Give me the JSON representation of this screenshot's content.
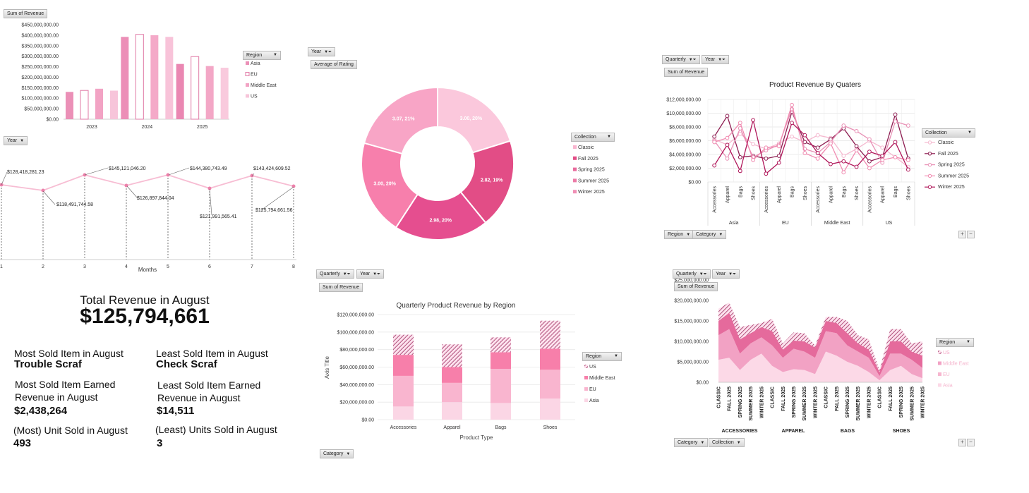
{
  "colors": {
    "asia": "#f4a8c8",
    "eu": "#e86fa0",
    "middle_east": "#f07aa6",
    "us": "#f9c7db",
    "dark": "#a0104e",
    "pink_line": "#f7b6cf",
    "classic": "#f8c4d8",
    "fall": "#e34d87",
    "spring": "#f07aa6",
    "summer": "#e66a9c",
    "winter": "#f0a0c0"
  },
  "buttons": {
    "sum_revenue_1": "Sum of Revenue",
    "region_1": "Region",
    "year_1": "Year",
    "year_2": "Year",
    "avg_rating": "Average of Rating",
    "collection_1": "Collection",
    "quarterly_1": "Quarterly",
    "year_3": "Year",
    "sum_revenue_2": "Sum of Revenue",
    "collection_2": "Collection",
    "region_2": "Region",
    "category_1": "Category",
    "quarterly_2": "Quarterly",
    "year_4": "Year",
    "sum_revenue_3": "Sum of Revenue",
    "region_3": "Region",
    "category_2": "Category",
    "quarterly_3": "Quarterly",
    "year_5": "Year",
    "sum_revenue_4": "Sum of Revenue",
    "region_4": "Region",
    "category_3": "Category",
    "collection_3": "Collection"
  },
  "kpi": {
    "total_title": "Total Revenue in August",
    "total_value": "$125,794,661",
    "most_sold_label": "Most Sold Item in August",
    "most_sold_value": "Trouble Scraf",
    "least_sold_label": "Least Sold Item in August",
    "least_sold_value": "Check Scraf",
    "most_earned_label1": "Most Sold Item Earned",
    "most_earned_label2": "Revenue in August",
    "most_earned_value": "$2,438,264",
    "least_earned_label1": "Least Sold Item Earned",
    "least_earned_label2": "Revenue in August",
    "least_earned_value": "$14,511",
    "most_units_label": "(Most) Unit Sold in August",
    "most_units_value": "493",
    "least_units_label": "(Least) Units Sold in August",
    "least_units_value": "3"
  },
  "chart_data": [
    {
      "id": "region_year_bar",
      "type": "bar",
      "title": "",
      "categories": [
        "2023",
        "2024",
        "2025"
      ],
      "series": [
        {
          "name": "Asia",
          "values": [
            130000000,
            392000000,
            263000000
          ]
        },
        {
          "name": "EU",
          "values": [
            137000000,
            404000000,
            298000000
          ]
        },
        {
          "name": "Middle East",
          "values": [
            145000000,
            400000000,
            253000000
          ]
        },
        {
          "name": "US",
          "values": [
            136000000,
            392000000,
            245000000
          ]
        }
      ],
      "ylim": [
        0,
        450000000
      ],
      "yticks": [
        "$0.00",
        "$50,000,000.00",
        "$100,000,000.00",
        "$150,000,000.00",
        "$200,000,000.00",
        "$250,000,000.00",
        "$300,000,000.00",
        "$350,000,000.00",
        "$400,000,000.00",
        "$450,000,000.00"
      ],
      "legend_title": "Region",
      "legend": [
        "Asia",
        "EU",
        "Middle East",
        "US"
      ]
    },
    {
      "id": "monthly_line",
      "type": "line",
      "xlabel": "Months",
      "x": [
        "1",
        "2",
        "3",
        "4",
        "5",
        "6",
        "7",
        "8"
      ],
      "values": [
        128418281.23,
        118491744.58,
        145121046.2,
        126897844.04,
        144380743.49,
        121991565.41,
        143424609.52,
        125794661.56
      ],
      "labels": [
        "$128,418,281.23",
        "$118,491,744.58",
        "$145,121,046.20",
        "$126,897,844.04",
        "$144,380,743.49",
        "$121,991,565.41",
        "$143,424,609.52",
        "$125,794,661.56"
      ],
      "ylim": [
        80000000,
        170000000
      ]
    },
    {
      "id": "rating_donut",
      "type": "pie",
      "slices": [
        {
          "name": "Classic",
          "value": 3.0,
          "label": "3.00, 20%"
        },
        {
          "name": "Fall 2025",
          "value": 2.82,
          "label": "2.82, 19%"
        },
        {
          "name": "Spring 2025",
          "value": 2.98,
          "label": "2.98, 20%"
        },
        {
          "name": "Summer 2025",
          "value": 3.0,
          "label": "3.00, 20%"
        },
        {
          "name": "Winter 2025",
          "value": 3.07,
          "label": "3.07, 21%"
        }
      ],
      "legend_title": "Collection",
      "legend": [
        "Classic",
        "Fall 2025",
        "Spring 2025",
        "Summer 2025",
        "Winter 2025"
      ]
    },
    {
      "id": "quarters_line",
      "type": "line",
      "title": "Product Revenue By Quaters",
      "x": [
        "Accessories",
        "Apparel",
        "Bags",
        "Shoes",
        "Accessories",
        "Apparel",
        "Bags",
        "Shoes",
        "Accessories",
        "Apparel",
        "Bags",
        "Shoes",
        "Accessories",
        "Apparel",
        "Bags",
        "Shoes"
      ],
      "groups": [
        "Asia",
        "EU",
        "Middle East",
        "US"
      ],
      "series": [
        {
          "name": "Classic",
          "values": [
            6.2,
            5.4,
            7.0,
            5.5,
            4.8,
            5.6,
            6.6,
            5.8,
            6.8,
            6.4,
            3.8,
            4.8,
            6.0,
            5.0,
            3.6,
            2.2
          ]
        },
        {
          "name": "Fall 2025",
          "values": [
            6.6,
            9.6,
            3.6,
            3.8,
            3.4,
            3.8,
            10.2,
            5.8,
            5.0,
            6.2,
            7.8,
            5.2,
            3.0,
            3.6,
            9.8,
            3.4
          ]
        },
        {
          "name": "Spring 2025",
          "values": [
            6.0,
            3.4,
            7.8,
            3.6,
            4.6,
            5.4,
            10.6,
            4.8,
            4.2,
            5.8,
            8.2,
            7.4,
            6.2,
            2.8,
            8.8,
            8.2
          ]
        },
        {
          "name": "Summer 2025",
          "values": [
            5.8,
            6.4,
            8.6,
            3.2,
            5.0,
            5.2,
            11.2,
            4.2,
            3.4,
            5.6,
            1.4,
            4.6,
            2.0,
            3.2,
            3.6,
            3.2
          ]
        },
        {
          "name": "Winter 2025",
          "values": [
            2.4,
            5.4,
            1.6,
            9.0,
            1.2,
            2.8,
            8.6,
            6.8,
            4.2,
            2.6,
            3.0,
            2.2,
            4.4,
            3.8,
            5.8,
            1.8
          ]
        }
      ],
      "ylim": [
        0,
        12000000
      ],
      "yticks": [
        "$0.00",
        "$2,000,000.00",
        "$4,000,000.00",
        "$6,000,000.00",
        "$8,000,000.00",
        "$10,000,000.00",
        "$12,000,000.00"
      ],
      "legend_title": "Collection",
      "legend": [
        "Classic",
        "Fall 2025",
        "Spring 2025",
        "Summer 2025",
        "Winter 2025"
      ]
    },
    {
      "id": "stacked_region",
      "type": "bar",
      "stacked": true,
      "title": "Quarterly Product Revenue by Region",
      "xlabel": "Product Type",
      "ylabel": "Axis Title",
      "categories": [
        "Accessories",
        "Apparel",
        "Bags",
        "Shoes"
      ],
      "series": [
        {
          "name": "Asia",
          "values": [
            15000000,
            20000000,
            19000000,
            24000000
          ]
        },
        {
          "name": "EU",
          "values": [
            35000000,
            22000000,
            39000000,
            33000000
          ]
        },
        {
          "name": "Middle East",
          "values": [
            24000000,
            18000000,
            19000000,
            24000000
          ]
        },
        {
          "name": "US",
          "values": [
            23000000,
            26000000,
            17000000,
            32000000
          ]
        }
      ],
      "ylim": [
        0,
        120000000
      ],
      "yticks": [
        "$0.00",
        "$20,000,000.00",
        "$40,000,000.00",
        "$60,000,000.00",
        "$80,000,000.00",
        "$100,000,000.00",
        "$120,000,000.00"
      ],
      "legend_title": "Region",
      "legend": [
        "US",
        "Middle East",
        "EU",
        "Asia"
      ]
    },
    {
      "id": "stacked_area",
      "type": "area",
      "stacked": true,
      "x": [
        "CLASSIC",
        "FALL 2025",
        "SPRING 2025",
        "SUMMER 2025",
        "WINTER 2025",
        "CLASSIC",
        "FALL 2025",
        "SPRING 2025",
        "SUMMER 2025",
        "WINTER 2025",
        "CLASSIC",
        "FALL 2025",
        "SPRING 2025",
        "SUMMER 2025",
        "WINTER 2025",
        "CLASSIC",
        "FALL 2025",
        "SPRING 2025",
        "SUMMER 2025",
        "WINTER 2025"
      ],
      "groups": [
        "ACCESSORIES",
        "APPAREL",
        "BAGS",
        "SHOES"
      ],
      "series": [
        {
          "name": "Asia",
          "values": [
            5.5,
            6,
            3,
            5.5,
            7,
            4,
            2.5,
            3.2,
            3,
            2,
            7.5,
            6.5,
            5,
            4,
            2.5,
            0.5,
            3,
            4,
            2,
            1
          ]
        },
        {
          "name": "EU",
          "values": [
            6,
            7,
            4,
            4,
            4,
            5,
            3.5,
            5,
            4.5,
            4,
            5,
            5.5,
            4,
            3.5,
            3.5,
            1,
            4,
            3,
            3.5,
            2.5
          ]
        },
        {
          "name": "Middle East",
          "values": [
            3.5,
            4,
            3.5,
            2.5,
            2.5,
            3.5,
            2,
            2,
            2.5,
            2.5,
            2.5,
            2.5,
            3,
            2,
            2,
            1,
            3,
            3,
            2,
            3
          ]
        },
        {
          "name": "US",
          "values": [
            3,
            2.5,
            3,
            2,
            1,
            3,
            1.5,
            2,
            2,
            0.5,
            1,
            1.5,
            3,
            2,
            2.5,
            0.5,
            3,
            3,
            2,
            3.5
          ]
        }
      ],
      "ylim": [
        0,
        25000000
      ],
      "yticks": [
        "$0.00",
        "$5,000,000.00",
        "$10,000,000.00",
        "$15,000,000.00",
        "$20,000,000.00",
        "$25,000,000.00"
      ],
      "legend_title": "Region",
      "legend": [
        "US",
        "Middle East",
        "EU",
        "Asia"
      ]
    }
  ]
}
